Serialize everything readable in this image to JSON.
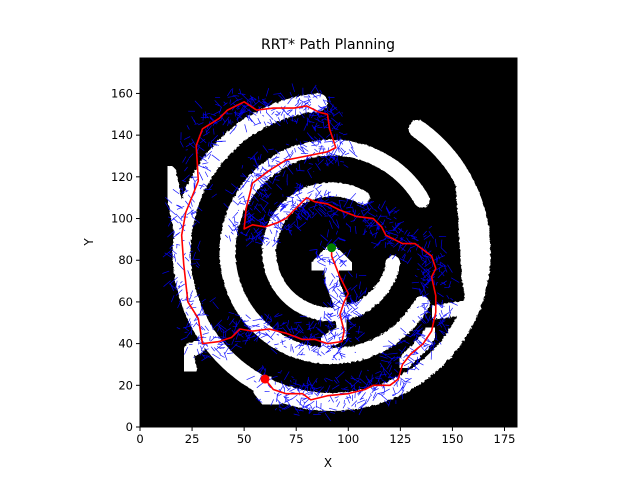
{
  "chart_data": {
    "type": "scatter",
    "title": "RRT* Path Planning",
    "xlabel": "X",
    "ylabel": "Y",
    "xlim": [
      0,
      181
    ],
    "ylim": [
      0,
      177
    ],
    "xticks": [
      0,
      25,
      50,
      75,
      100,
      125,
      150,
      175
    ],
    "yticks": [
      0,
      20,
      40,
      60,
      80,
      100,
      120,
      140,
      160
    ],
    "grid": false,
    "background": "maze occupancy map (black = obstacle, white = free space)",
    "series": [
      {
        "role": "path",
        "color": "#ff0000",
        "points": [
          [
            60,
            23
          ],
          [
            64,
            18
          ],
          [
            70,
            16
          ],
          [
            78,
            16
          ],
          [
            82,
            13
          ],
          [
            90,
            15
          ],
          [
            100,
            16
          ],
          [
            108,
            18
          ],
          [
            112,
            20
          ],
          [
            120,
            20
          ],
          [
            124,
            23
          ],
          [
            126,
            30
          ],
          [
            130,
            35
          ],
          [
            136,
            40
          ],
          [
            140,
            46
          ],
          [
            142,
            55
          ],
          [
            142,
            63
          ],
          [
            140,
            72
          ],
          [
            142,
            76
          ],
          [
            140,
            82
          ],
          [
            132,
            88
          ],
          [
            126,
            88
          ],
          [
            118,
            92
          ],
          [
            116,
            96
          ],
          [
            112,
            100
          ],
          [
            104,
            101
          ],
          [
            96,
            104
          ],
          [
            90,
            107
          ],
          [
            84,
            108
          ],
          [
            80,
            110
          ],
          [
            74,
            104
          ],
          [
            70,
            100
          ],
          [
            66,
            98
          ],
          [
            60,
            96
          ],
          [
            54,
            97
          ],
          [
            50,
            95
          ],
          [
            51,
            105
          ],
          [
            54,
            117
          ],
          [
            58,
            120
          ],
          [
            62,
            123
          ],
          [
            70,
            128
          ],
          [
            80,
            130
          ],
          [
            90,
            132
          ],
          [
            94,
            134
          ],
          [
            91,
            143
          ],
          [
            90,
            150
          ],
          [
            86,
            151
          ],
          [
            80,
            154
          ],
          [
            74,
            153
          ],
          [
            64,
            153
          ],
          [
            56,
            152
          ],
          [
            50,
            156
          ],
          [
            42,
            152
          ],
          [
            38,
            148
          ],
          [
            30,
            143
          ],
          [
            27,
            135
          ],
          [
            28,
            118
          ],
          [
            22,
            103
          ],
          [
            20,
            92
          ],
          [
            21,
            78
          ],
          [
            23,
            60
          ],
          [
            28,
            52
          ],
          [
            30,
            40
          ],
          [
            38,
            41
          ],
          [
            44,
            43
          ],
          [
            48,
            47
          ],
          [
            54,
            46
          ],
          [
            62,
            47
          ],
          [
            70,
            45
          ],
          [
            78,
            42
          ],
          [
            84,
            42
          ],
          [
            90,
            40
          ],
          [
            97,
            41
          ],
          [
            98,
            46
          ],
          [
            96,
            54
          ],
          [
            98,
            60
          ],
          [
            100,
            64
          ],
          [
            96,
            72
          ],
          [
            92,
            82
          ],
          [
            92,
            86
          ]
        ]
      },
      {
        "role": "start",
        "color": "#ff0000",
        "points": [
          [
            60,
            23
          ]
        ]
      },
      {
        "role": "goal",
        "color": "#008000",
        "points": [
          [
            92,
            86
          ]
        ]
      }
    ],
    "tree_color": "#0000ff"
  }
}
